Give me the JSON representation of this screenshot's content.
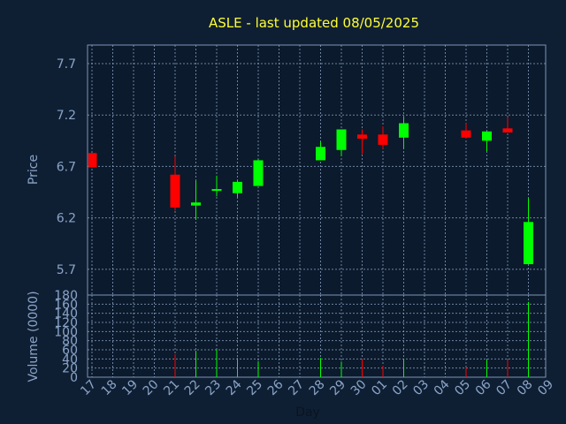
{
  "chart_data": {
    "type": "candlestick",
    "title": "ASLE - last updated 08/05/2025",
    "xlabel": "Day",
    "price_panel": {
      "ylabel": "Price",
      "ylim": [
        5.45,
        7.88
      ],
      "yticks": [
        "5.7",
        "6.2",
        "6.7",
        "7.2",
        "7.7"
      ],
      "up_color": "#00ff00",
      "down_color": "#ff0000"
    },
    "volume_panel": {
      "ylabel": "Volume (0000)",
      "ylim": [
        0,
        180
      ],
      "yticks": [
        "0",
        "20",
        "40",
        "60",
        "80",
        "100",
        "120",
        "140",
        "160",
        "180"
      ]
    },
    "day_labels": [
      "17",
      "18",
      "19",
      "20",
      "21",
      "22",
      "23",
      "24",
      "25",
      "26",
      "27",
      "28",
      "29",
      "30",
      "01",
      "02",
      "03",
      "04",
      "05",
      "06",
      "07",
      "08",
      "09"
    ],
    "candles": [
      {
        "day": "17",
        "open": 6.83,
        "high": 6.83,
        "low": 6.69,
        "close": 6.69,
        "volume": 0
      },
      {
        "day": "21",
        "open": 6.62,
        "high": 6.8,
        "low": 6.27,
        "close": 6.3,
        "volume": 50
      },
      {
        "day": "22",
        "open": 6.32,
        "high": 6.56,
        "low": 6.18,
        "close": 6.35,
        "volume": 58
      },
      {
        "day": "23",
        "open": 6.48,
        "high": 6.61,
        "low": 6.41,
        "close": 6.48,
        "volume": 60
      },
      {
        "day": "24",
        "open": 6.44,
        "high": 6.56,
        "low": 6.4,
        "close": 6.55,
        "volume": 42
      },
      {
        "day": "25",
        "open": 6.51,
        "high": 6.77,
        "low": 6.51,
        "close": 6.76,
        "volume": 35
      },
      {
        "day": "28",
        "open": 6.76,
        "high": 6.94,
        "low": 6.76,
        "close": 6.89,
        "volume": 42
      },
      {
        "day": "29",
        "open": 6.86,
        "high": 7.06,
        "low": 6.8,
        "close": 7.06,
        "volume": 34
      },
      {
        "day": "30",
        "open": 7.01,
        "high": 7.06,
        "low": 6.82,
        "close": 6.97,
        "volume": 40
      },
      {
        "day": "01",
        "open": 7.01,
        "high": 7.09,
        "low": 6.87,
        "close": 6.91,
        "volume": 25
      },
      {
        "day": "02",
        "open": 6.98,
        "high": 7.18,
        "low": 6.87,
        "close": 7.12,
        "volume": 40
      },
      {
        "day": "05",
        "open": 7.05,
        "high": 7.12,
        "low": 6.97,
        "close": 6.98,
        "volume": 22
      },
      {
        "day": "06",
        "open": 6.95,
        "high": 7.04,
        "low": 6.85,
        "close": 7.04,
        "volume": 38
      },
      {
        "day": "07",
        "open": 7.07,
        "high": 7.18,
        "low": 7.03,
        "close": 7.03,
        "volume": 38
      },
      {
        "day": "08",
        "open": 5.75,
        "high": 6.39,
        "low": 5.75,
        "close": 6.16,
        "volume": 165
      }
    ]
  }
}
